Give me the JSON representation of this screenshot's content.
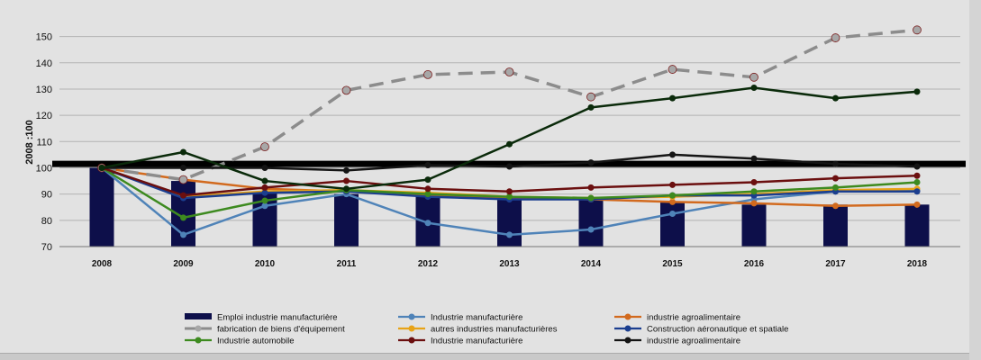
{
  "chart_data": {
    "type": "bar+line",
    "title": "",
    "ylabel": "2008 :100",
    "xlabel": "",
    "ylim": [
      70,
      155
    ],
    "yticks": [
      70,
      80,
      90,
      100,
      110,
      120,
      130,
      140,
      150
    ],
    "grid": true,
    "legend_position": "bottom",
    "categories": [
      "2008",
      "2009",
      "2010",
      "2011",
      "2012",
      "2013",
      "2014",
      "2015",
      "2016",
      "2017",
      "2018"
    ],
    "reference_line": 101.5,
    "series": [
      {
        "name": "Emploi industrie manufacturière",
        "kind": "bar",
        "color": "#0d0f4a",
        "values": [
          100,
          95,
          91,
          90,
          89,
          88,
          88,
          87,
          86,
          86,
          86
        ]
      },
      {
        "name": "Industrie manufacturière",
        "kind": "line",
        "color": "#4f83b8",
        "dashed": false,
        "values": [
          100,
          74.5,
          85.5,
          90,
          79,
          74.5,
          76.5,
          82.5,
          88,
          91,
          91.5
        ]
      },
      {
        "name": "industrie agroalimentaire",
        "kind": "line",
        "color": "#d26a1e",
        "dashed": false,
        "values": [
          100,
          95.5,
          92,
          91,
          89.5,
          88.5,
          88,
          87,
          86.5,
          85.5,
          86
        ]
      },
      {
        "name": "fabrication de biens d'équipement",
        "kind": "line",
        "color": "#8c8c8c",
        "dashed": true,
        "values": [
          100,
          95.5,
          108,
          129.5,
          135.5,
          136.5,
          127,
          137.5,
          134.5,
          149.5,
          152.5
        ]
      },
      {
        "name": "autres industries manufacturières",
        "kind": "line",
        "color": "#e8a317",
        "dashed": false,
        "values": [
          100,
          89,
          91,
          91.5,
          90.5,
          89,
          88.5,
          89,
          90,
          91.5,
          92
        ]
      },
      {
        "name": "Construction aéronautique et spatiale",
        "kind": "line",
        "color": "#1b3e8f",
        "dashed": false,
        "values": [
          100,
          88.5,
          90.5,
          91,
          89,
          88,
          88,
          89.5,
          89.5,
          91,
          91
        ]
      },
      {
        "name": "Industrie automobile",
        "kind": "line",
        "color": "#3d8a1f",
        "dashed": false,
        "values": [
          100,
          81,
          87.5,
          91.5,
          90,
          89,
          88.5,
          89.5,
          91,
          92.5,
          94.5
        ]
      },
      {
        "name": "Industrie manufacturière",
        "kind": "line",
        "color": "#6b0f0f",
        "dashed": false,
        "values": [
          100,
          89.5,
          92.5,
          95,
          92,
          91,
          92.5,
          93.5,
          94.5,
          96,
          97
        ]
      },
      {
        "name": "industrie agroalimentaire",
        "kind": "line",
        "color": "#141414",
        "dashed": false,
        "values": [
          100,
          100,
          100,
          99,
          101,
          100.5,
          102,
          105,
          103.5,
          101.5,
          100.5
        ]
      },
      {
        "name": "",
        "kind": "line",
        "color": "#0a2a0a",
        "dashed": false,
        "values": [
          100,
          106,
          95,
          92,
          95.5,
          109,
          123,
          126.5,
          130.5,
          126.5,
          129
        ]
      }
    ]
  }
}
